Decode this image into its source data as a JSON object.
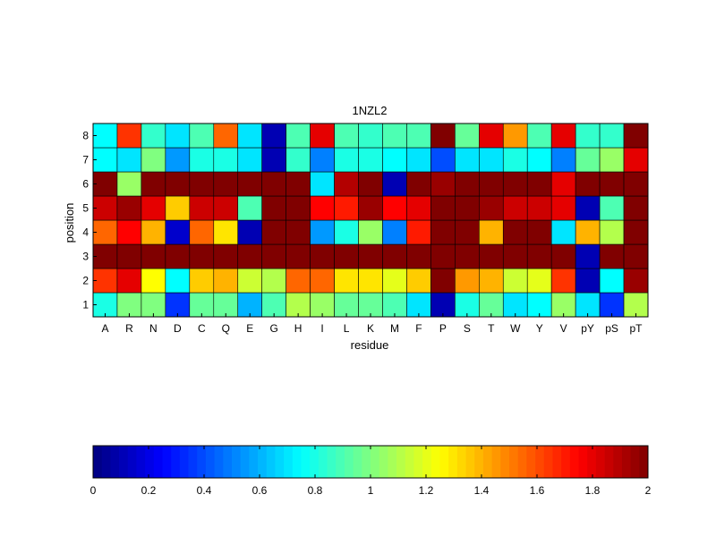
{
  "chart_data": {
    "type": "heatmap",
    "title": "1NZL2",
    "xlabel": "residue",
    "ylabel": "position",
    "x_categories": [
      "A",
      "R",
      "N",
      "D",
      "C",
      "Q",
      "E",
      "G",
      "H",
      "I",
      "L",
      "K",
      "M",
      "F",
      "P",
      "S",
      "T",
      "W",
      "Y",
      "V",
      "pY",
      "pS",
      "pT"
    ],
    "y_categories": [
      "1",
      "2",
      "3",
      "4",
      "5",
      "6",
      "7",
      "8"
    ],
    "values": [
      [
        0.8,
        1.0,
        1.0,
        0.35,
        0.95,
        0.95,
        0.6,
        0.9,
        1.1,
        1.05,
        0.95,
        0.95,
        0.9,
        0.7,
        0.1,
        0.8,
        0.95,
        0.7,
        0.75,
        1.05,
        0.7,
        0.35,
        1.1
      ],
      [
        1.65,
        1.8,
        1.25,
        0.75,
        1.35,
        1.4,
        1.15,
        1.1,
        1.55,
        1.55,
        1.3,
        1.3,
        1.2,
        1.35,
        2.0,
        1.45,
        1.4,
        1.15,
        1.2,
        1.65,
        0.1,
        0.75,
        1.95
      ],
      [
        2.0,
        2.0,
        2.0,
        2.0,
        2.0,
        2.0,
        2.0,
        2.0,
        2.0,
        2.0,
        2.0,
        2.0,
        2.0,
        2.0,
        2.0,
        2.0,
        2.0,
        2.0,
        2.0,
        2.0,
        0.1,
        2.0,
        2.0
      ],
      [
        1.55,
        1.75,
        1.4,
        0.15,
        1.55,
        1.3,
        0.1,
        2.0,
        2.0,
        0.55,
        0.8,
        1.05,
        0.5,
        1.7,
        2.0,
        2.0,
        1.4,
        2.0,
        2.0,
        0.7,
        1.4,
        1.1,
        2.0
      ],
      [
        1.85,
        1.95,
        1.8,
        1.35,
        1.85,
        1.85,
        0.9,
        2.0,
        2.0,
        1.75,
        1.7,
        1.95,
        1.75,
        1.8,
        2.0,
        2.0,
        1.95,
        1.85,
        1.85,
        1.8,
        0.1,
        0.9,
        2.0
      ],
      [
        2.0,
        1.05,
        2.0,
        2.0,
        2.0,
        2.0,
        2.0,
        2.0,
        2.0,
        0.7,
        1.9,
        2.0,
        0.1,
        2.0,
        1.95,
        2.0,
        2.0,
        2.0,
        2.0,
        1.8,
        2.0,
        2.0,
        2.0
      ],
      [
        0.75,
        0.7,
        1.0,
        0.55,
        0.8,
        0.8,
        0.7,
        0.1,
        0.85,
        0.5,
        0.8,
        0.8,
        0.75,
        0.7,
        0.4,
        0.7,
        0.7,
        0.8,
        0.75,
        0.5,
        0.95,
        1.05,
        1.8
      ],
      [
        0.75,
        1.65,
        0.85,
        0.7,
        0.9,
        1.55,
        0.7,
        0.1,
        0.9,
        1.8,
        0.9,
        0.85,
        0.9,
        0.9,
        2.0,
        0.95,
        1.8,
        1.45,
        0.9,
        1.8,
        0.85,
        0.85,
        2.0
      ]
    ],
    "clim": [
      0,
      2
    ],
    "colormap": "jet",
    "colorbar": {
      "placement": "bottom",
      "ticks": [
        "0",
        "0.2",
        "0.4",
        "0.6",
        "0.8",
        "1",
        "1.2",
        "1.4",
        "1.6",
        "1.8",
        "2"
      ],
      "tick_values": [
        0,
        0.2,
        0.4,
        0.6,
        0.8,
        1.0,
        1.2,
        1.4,
        1.6,
        1.8,
        2.0
      ]
    },
    "grid": false
  }
}
